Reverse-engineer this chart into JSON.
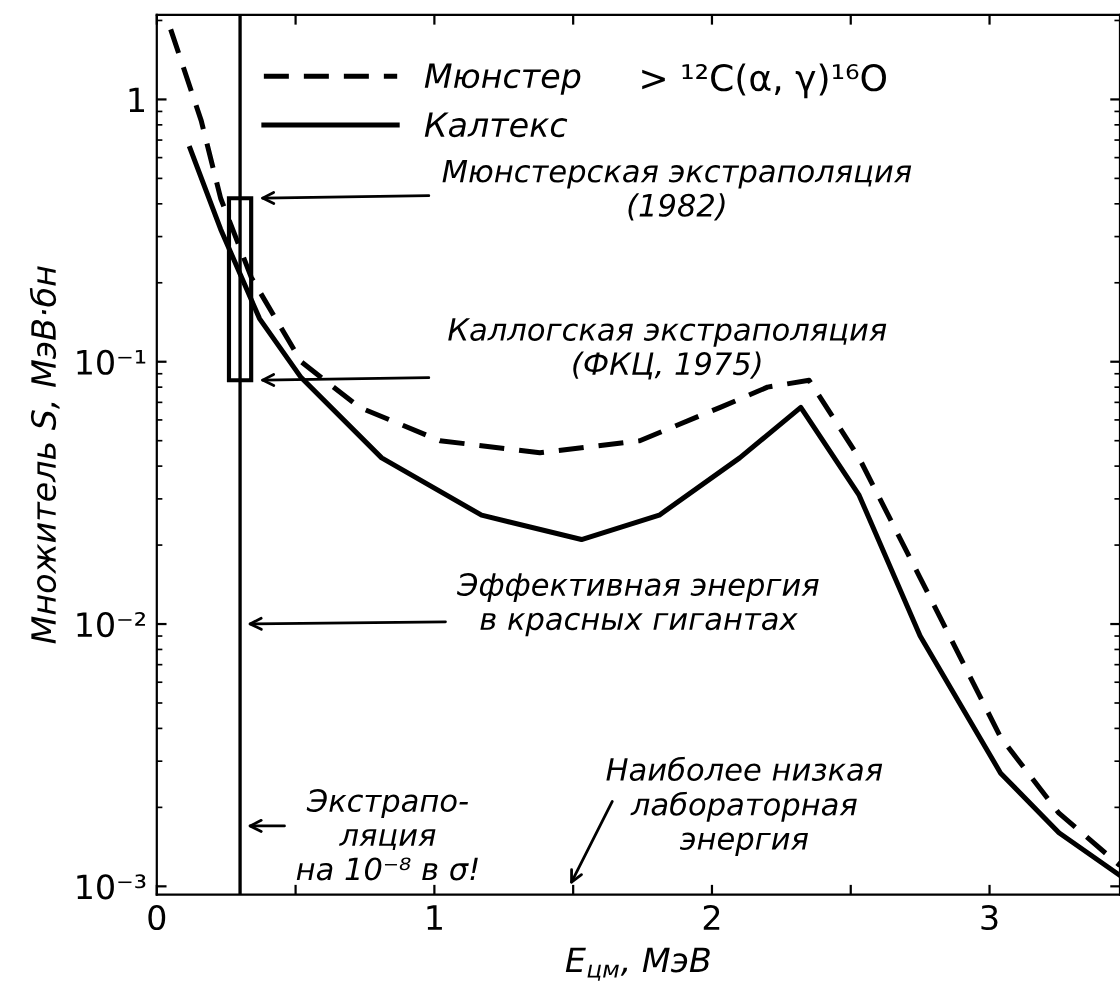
{
  "chart_data": {
    "type": "line",
    "xlabel": "E$_{цм}$, МэВ",
    "ylabel": "Множитель S, МэВ·бн",
    "log": "y",
    "xlim": [
      0,
      3.47
    ],
    "ylim": [
      0.00093,
      2.1
    ],
    "xticks": [
      0,
      {
        "value": 0.5,
        "label": null
      },
      1,
      {
        "value": 1.5,
        "label": null
      },
      2,
      {
        "value": 2.5,
        "label": null
      },
      {
        "value": 3,
        "label": "3"
      }
    ],
    "yticks": [
      {
        "value": 0.001,
        "label": "10⁻³"
      },
      {
        "value": 0.01,
        "label": "10⁻²"
      },
      {
        "value": 0.1,
        "label": "10⁻¹"
      },
      1
    ],
    "grid": false,
    "legend": "top left",
    "marker": "none",
    "series": [
      {
        "name": "Мюнстер",
        "color": "#000000",
        "line_style": "dashed",
        "x": [
          0.05,
          0.16,
          0.23,
          0.34,
          0.52,
          0.73,
          1.02,
          1.38,
          1.74,
          2.03,
          2.2,
          2.35,
          2.53,
          2.75,
          3.04,
          3.25,
          3.47
        ],
        "values": [
          1.85,
          0.83,
          0.42,
          0.21,
          0.1,
          0.067,
          0.05,
          0.045,
          0.05,
          0.067,
          0.08,
          0.085,
          0.043,
          0.015,
          0.0037,
          0.0019,
          0.0012
        ]
      },
      {
        "name": "Калтекс",
        "color": "#000000",
        "line_style": "solid",
        "x": [
          0.12,
          0.23,
          0.37,
          0.52,
          0.81,
          1.17,
          1.53,
          1.81,
          2.1,
          2.32,
          2.53,
          2.75,
          3.04,
          3.25,
          3.47
        ],
        "values": [
          0.65,
          0.32,
          0.146,
          0.087,
          0.043,
          0.026,
          0.021,
          0.026,
          0.043,
          0.067,
          0.031,
          0.009,
          0.0027,
          0.0016,
          0.0011
        ]
      }
    ],
    "ref_lines": [
      {
        "axis": "x",
        "value": 0.3,
        "color": "#000000",
        "line_style": "solid"
      }
    ],
    "annotations": [
      "Мюнстерская экстраполяция\n(1982)",
      "Каллогская экстраполяция\n(ФКЦ, 1975)",
      "Эффективная энергия\nв красных гигантах",
      "Экстрапо-\nляция\nна 10⁻⁸ в σ!",
      "Наиболее низкая\nлабораторная\nэнергия",
      "> ¹²C(α, γ)¹⁶O"
    ]
  }
}
